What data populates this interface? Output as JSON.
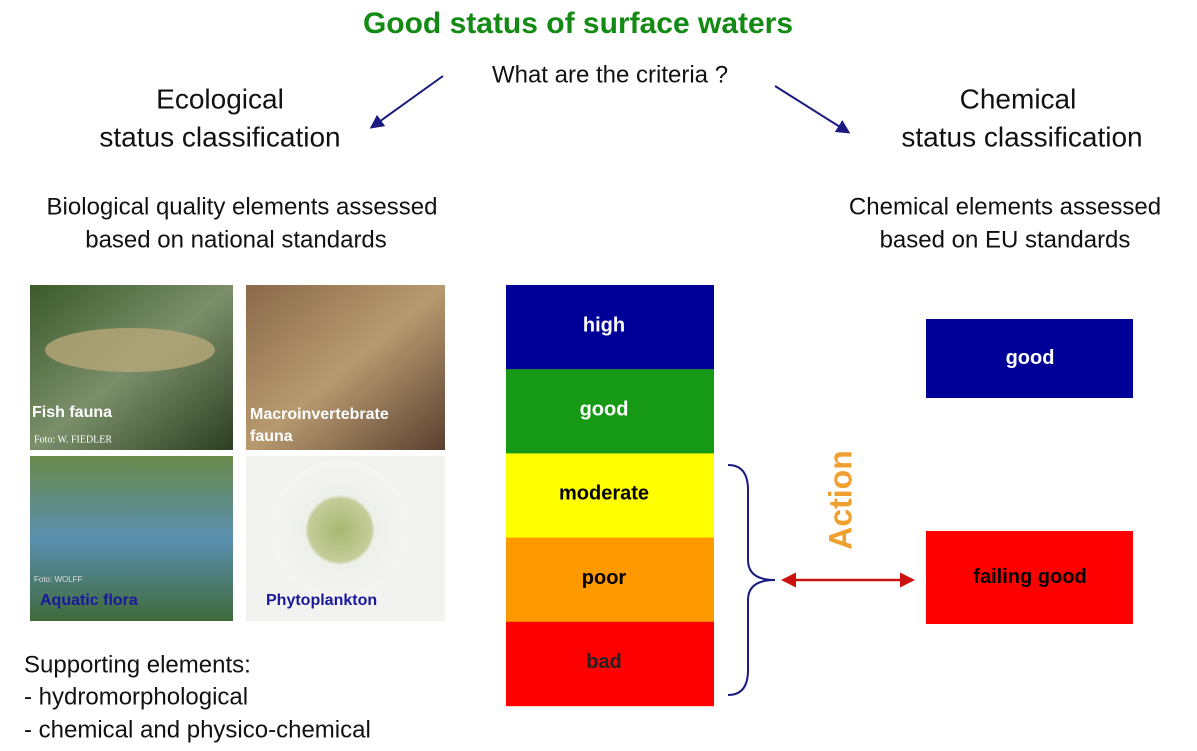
{
  "title": "Good status of surface waters",
  "question": "What are the criteria ?",
  "ecological": {
    "heading": [
      "Ecological",
      "status classification"
    ],
    "description": [
      "Biological quality elements assessed",
      "based on national standards"
    ],
    "photos": [
      {
        "label": [
          "Fish fauna"
        ],
        "credit": "Foto: W. FIEDLER"
      },
      {
        "label": [
          "Macroinvertebrate",
          "fauna"
        ]
      },
      {
        "label": [
          "Aquatic flora"
        ],
        "credit": "Foto: WOLFF"
      },
      {
        "label": [
          "Phytoplankton"
        ]
      }
    ],
    "classes": [
      {
        "label": "high",
        "color": "#000099",
        "text_color": "#ffffff"
      },
      {
        "label": "good",
        "color": "#169a16",
        "text_color": "#ffffff"
      },
      {
        "label": "moderate",
        "color": "#ffff00",
        "text_color": "#000000"
      },
      {
        "label": "poor",
        "color": "#ff9900",
        "text_color": "#000000"
      },
      {
        "label": "bad",
        "color": "#ff0000",
        "text_color": "#222222"
      }
    ],
    "supporting": {
      "heading": "Supporting elements:",
      "items": [
        "- hydromorphological",
        "- chemical and physico-chemical"
      ]
    }
  },
  "chemical": {
    "heading": [
      "Chemical",
      "status classification"
    ],
    "description": [
      "Chemical elements assessed",
      "based on EU standards"
    ],
    "classes": [
      {
        "label": "good",
        "color": "#000099",
        "text_color": "#ffffff"
      },
      {
        "label": "failing good",
        "color": "#ff0000",
        "text_color": "#000000"
      }
    ]
  },
  "action": "Action"
}
